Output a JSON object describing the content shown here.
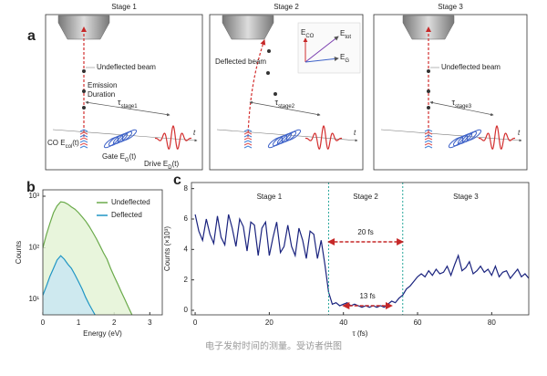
{
  "diagram": {
    "label": "a",
    "stages": [
      {
        "title": "Stage 1",
        "beam": "Undeflected beam",
        "emission": [
          "Emission",
          "Duration"
        ],
        "tau": {
          "main": "τ",
          "sub": "stage1"
        },
        "co": {
          "main": "CO E",
          "sub": "col",
          "end": "(t)"
        },
        "gate": {
          "main": "Gate E",
          "sub": "G",
          "end": "(t)"
        },
        "drive": {
          "main": "Drive E",
          "sub": "D",
          "end": "(t)"
        },
        "t": "t"
      },
      {
        "title": "Stage 2",
        "beam": "Deflected beam",
        "tau": {
          "main": "τ",
          "sub": "stage2"
        },
        "vectors": [
          {
            "main": "E",
            "sub": "CO"
          },
          {
            "main": "E",
            "sub": "tot"
          },
          {
            "main": "E",
            "sub": "G"
          }
        ],
        "t": "t"
      },
      {
        "title": "Stage 3",
        "beam": "Undeflected beam",
        "tau": {
          "main": "τ",
          "sub": "stage3"
        },
        "t": "t"
      }
    ]
  },
  "chart_data": [
    {
      "type": "area",
      "label": "b",
      "xlabel": "Energy (eV)",
      "ylabel": "Counts",
      "log_y": true,
      "xlim": [
        0,
        3.35
      ],
      "xticks": [
        0,
        1,
        2,
        3
      ],
      "ylim": [
        5,
        1330
      ],
      "yticks": [
        {
          "value": 10,
          "label": "10¹"
        },
        {
          "value": 100,
          "label": "10²"
        },
        {
          "value": 1000,
          "label": "10³"
        }
      ],
      "legend": "top-right",
      "series": [
        {
          "name": "Undeflected",
          "color": "#6aaa4a",
          "fill": "#e4f3d6",
          "x": [
            0,
            0.1,
            0.2,
            0.3,
            0.4,
            0.5,
            0.6,
            0.7,
            0.8,
            0.9,
            1.0,
            1.1,
            1.2,
            1.3,
            1.4,
            1.5,
            1.6,
            1.7,
            1.8,
            1.9,
            2.0,
            2.1,
            2.2,
            2.3,
            2.4,
            2.5
          ],
          "values": [
            100,
            180,
            300,
            480,
            650,
            780,
            760,
            700,
            620,
            560,
            480,
            400,
            330,
            260,
            200,
            150,
            110,
            80,
            60,
            40,
            28,
            20,
            14,
            10,
            7,
            5
          ]
        },
        {
          "name": "Deflected",
          "color": "#1f95c4",
          "fill": "#c9e6f2",
          "x": [
            0,
            0.1,
            0.2,
            0.3,
            0.4,
            0.5,
            0.6,
            0.7,
            0.8,
            0.9,
            1.0,
            1.1,
            1.2,
            1.3,
            1.4,
            1.5
          ],
          "values": [
            12,
            18,
            28,
            40,
            58,
            70,
            60,
            48,
            40,
            30,
            22,
            16,
            11,
            8,
            6,
            4.5
          ]
        }
      ]
    },
    {
      "type": "line",
      "label": "c",
      "xlabel": "τ (fs)",
      "ylabel": "Counts (×10³)",
      "xlim": [
        -1,
        90
      ],
      "xticks": [
        0,
        20,
        40,
        60,
        80
      ],
      "ylim": [
        -0.3,
        8.4
      ],
      "yticks": [
        0,
        2,
        4,
        6,
        8
      ],
      "stage_lines": [
        36,
        56
      ],
      "stage_labels": [
        {
          "text": "Stage 1",
          "x": 20
        },
        {
          "text": "Stage 2",
          "x": 46
        },
        {
          "text": "Stage 3",
          "x": 73
        }
      ],
      "arrows": [
        {
          "text": "20 fs",
          "from": 36,
          "to": 56,
          "y": 4.5
        },
        {
          "text": "13 fs",
          "from": 40,
          "to": 53,
          "y": 0.3
        }
      ],
      "series": [
        {
          "name": "Counts",
          "color": "#1a237e",
          "x": [
            0,
            1,
            2,
            3,
            4,
            5,
            6,
            7,
            8,
            9,
            10,
            11,
            12,
            13,
            14,
            15,
            16,
            17,
            18,
            19,
            20,
            21,
            22,
            23,
            24,
            25,
            26,
            27,
            28,
            29,
            30,
            31,
            32,
            33,
            34,
            35,
            36,
            37,
            38,
            39,
            40,
            41,
            42,
            43,
            44,
            45,
            46,
            47,
            48,
            49,
            50,
            51,
            52,
            53,
            54,
            55,
            56,
            57,
            58,
            59,
            60,
            61,
            62,
            63,
            64,
            65,
            66,
            67,
            68,
            69,
            70,
            71,
            72,
            73,
            74,
            75,
            76,
            77,
            78,
            79,
            80,
            81,
            82,
            83,
            84,
            85,
            86,
            87,
            88,
            89,
            90
          ],
          "values": [
            6.3,
            5.2,
            4.6,
            6.0,
            5.0,
            4.4,
            6.2,
            4.8,
            4.3,
            6.3,
            5.4,
            4.2,
            6.0,
            5.5,
            3.9,
            5.8,
            5.6,
            3.6,
            5.4,
            5.8,
            3.6,
            4.8,
            5.8,
            3.8,
            4.2,
            5.6,
            4.2,
            3.6,
            5.4,
            4.6,
            3.4,
            5.2,
            5.0,
            3.4,
            4.6,
            3.0,
            1.2,
            0.4,
            0.5,
            0.3,
            0.4,
            0.5,
            0.3,
            0.4,
            0.3,
            0.2,
            0.3,
            0.2,
            0.3,
            0.2,
            0.3,
            0.2,
            0.4,
            0.6,
            0.5,
            0.8,
            1.0,
            1.4,
            1.6,
            1.9,
            2.2,
            2.4,
            2.2,
            2.6,
            2.3,
            2.7,
            2.4,
            2.5,
            2.9,
            2.3,
            3.0,
            3.6,
            2.6,
            2.8,
            3.2,
            2.4,
            2.6,
            2.9,
            2.5,
            2.7,
            2.3,
            2.9,
            2.2,
            2.5,
            2.6,
            2.1,
            2.4,
            2.7,
            2.2,
            2.4,
            2.1
          ]
        }
      ]
    }
  ],
  "caption": "电子发射时间的测量。受访者供图"
}
